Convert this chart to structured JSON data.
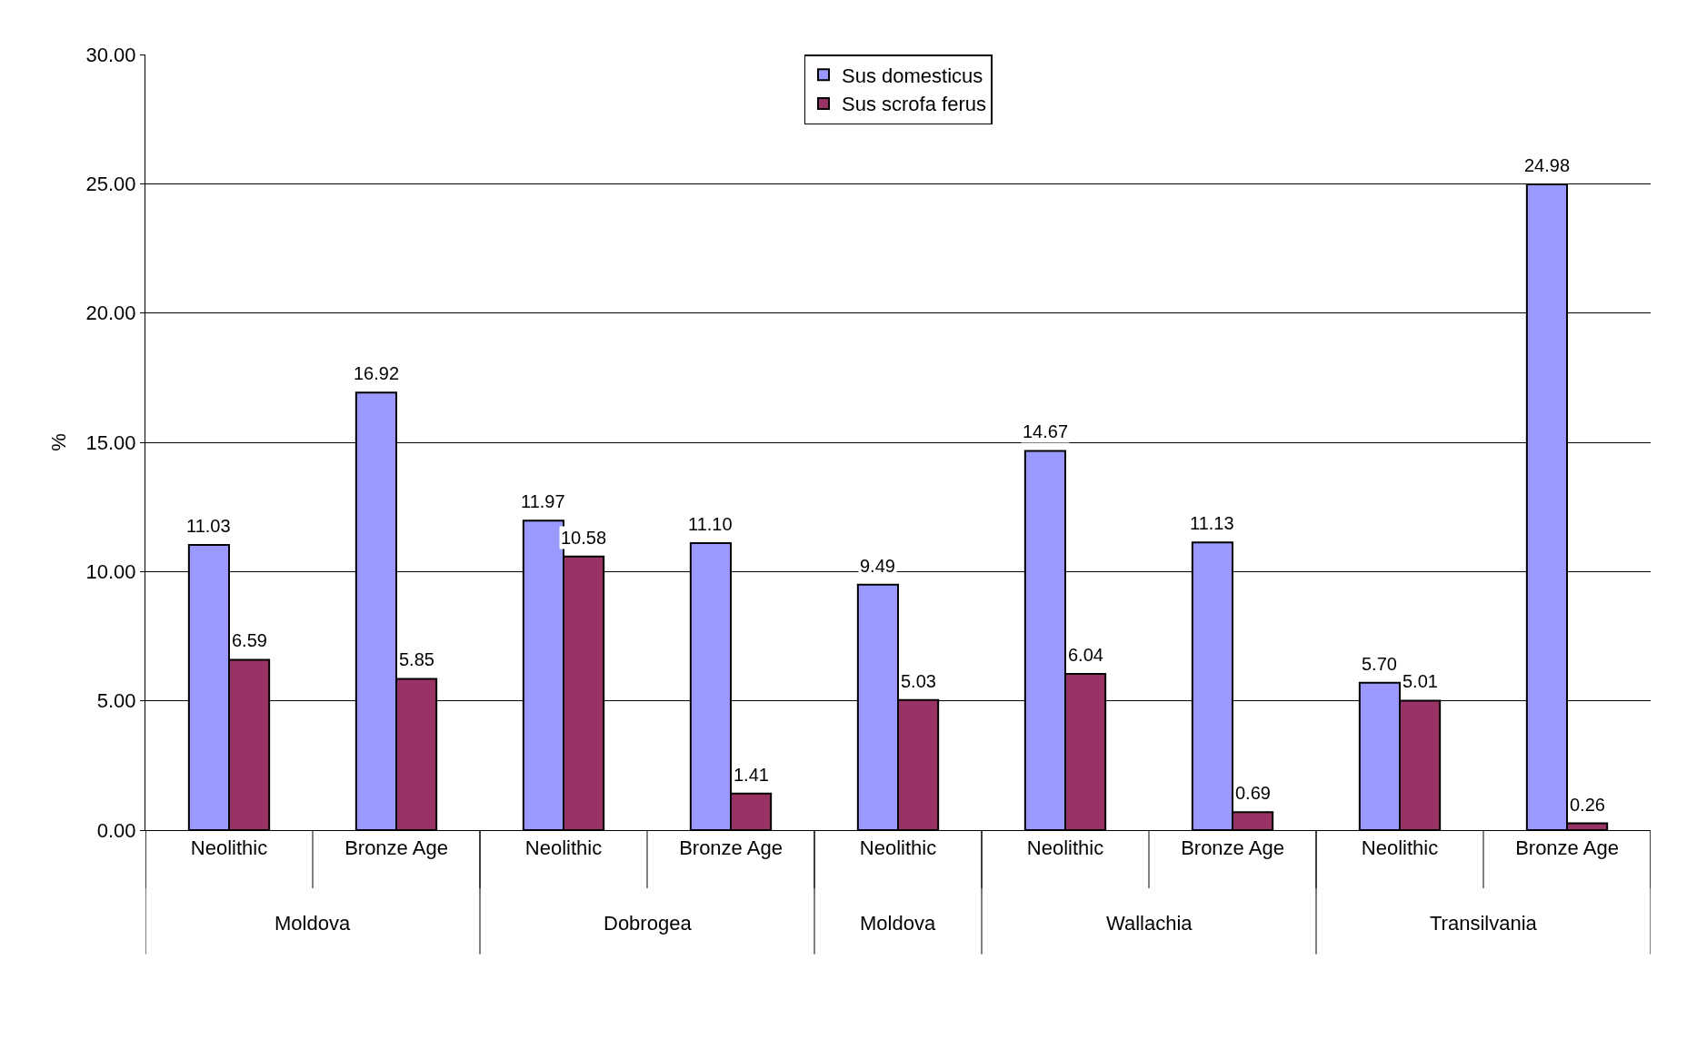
{
  "chart_data": {
    "type": "bar",
    "ylabel": "%",
    "categories": [
      "Neolithic",
      "Bronze Age",
      "Neolithic",
      "Bronze Age",
      "Neolithic",
      "Neolithic",
      "Bronze Age",
      "Neolithic",
      "Bronze Age"
    ],
    "annotations": [
      "Moldova",
      "Dobrogea",
      "Moldova",
      "Wallachia",
      "Transilvania"
    ],
    "series": [
      {
        "name": "Sus domesticus",
        "color": "#9999ff",
        "values": [
          11.03,
          16.92,
          11.97,
          11.1,
          9.49,
          14.67,
          11.13,
          5.7,
          24.98
        ],
        "value_labels": [
          "11.03",
          "16.92",
          "11.97",
          "11.10",
          "9.49",
          "14.67",
          "11.13",
          "5.70",
          "24.98"
        ]
      },
      {
        "name": "Sus scrofa ferus",
        "color": "#993366",
        "values": [
          6.59,
          5.85,
          10.58,
          1.41,
          5.03,
          6.04,
          0.69,
          5.01,
          0.26
        ],
        "value_labels": [
          "6.59",
          "5.85",
          "10.58",
          "1.41",
          "5.03",
          "6.04",
          "0.69",
          "5.01",
          "0.26"
        ]
      }
    ],
    "ylim": [
      0,
      30
    ],
    "yticks": [
      {
        "value": 0,
        "label": "0.00"
      },
      {
        "value": 5,
        "label": "5.00"
      },
      {
        "value": 10,
        "label": "10.00"
      },
      {
        "value": 15,
        "label": "15.00"
      },
      {
        "value": 20,
        "label": "20.00"
      },
      {
        "value": 25,
        "label": "25.00"
      },
      {
        "value": 30,
        "label": "30.00"
      }
    ],
    "grid": "y",
    "legend": "top"
  }
}
